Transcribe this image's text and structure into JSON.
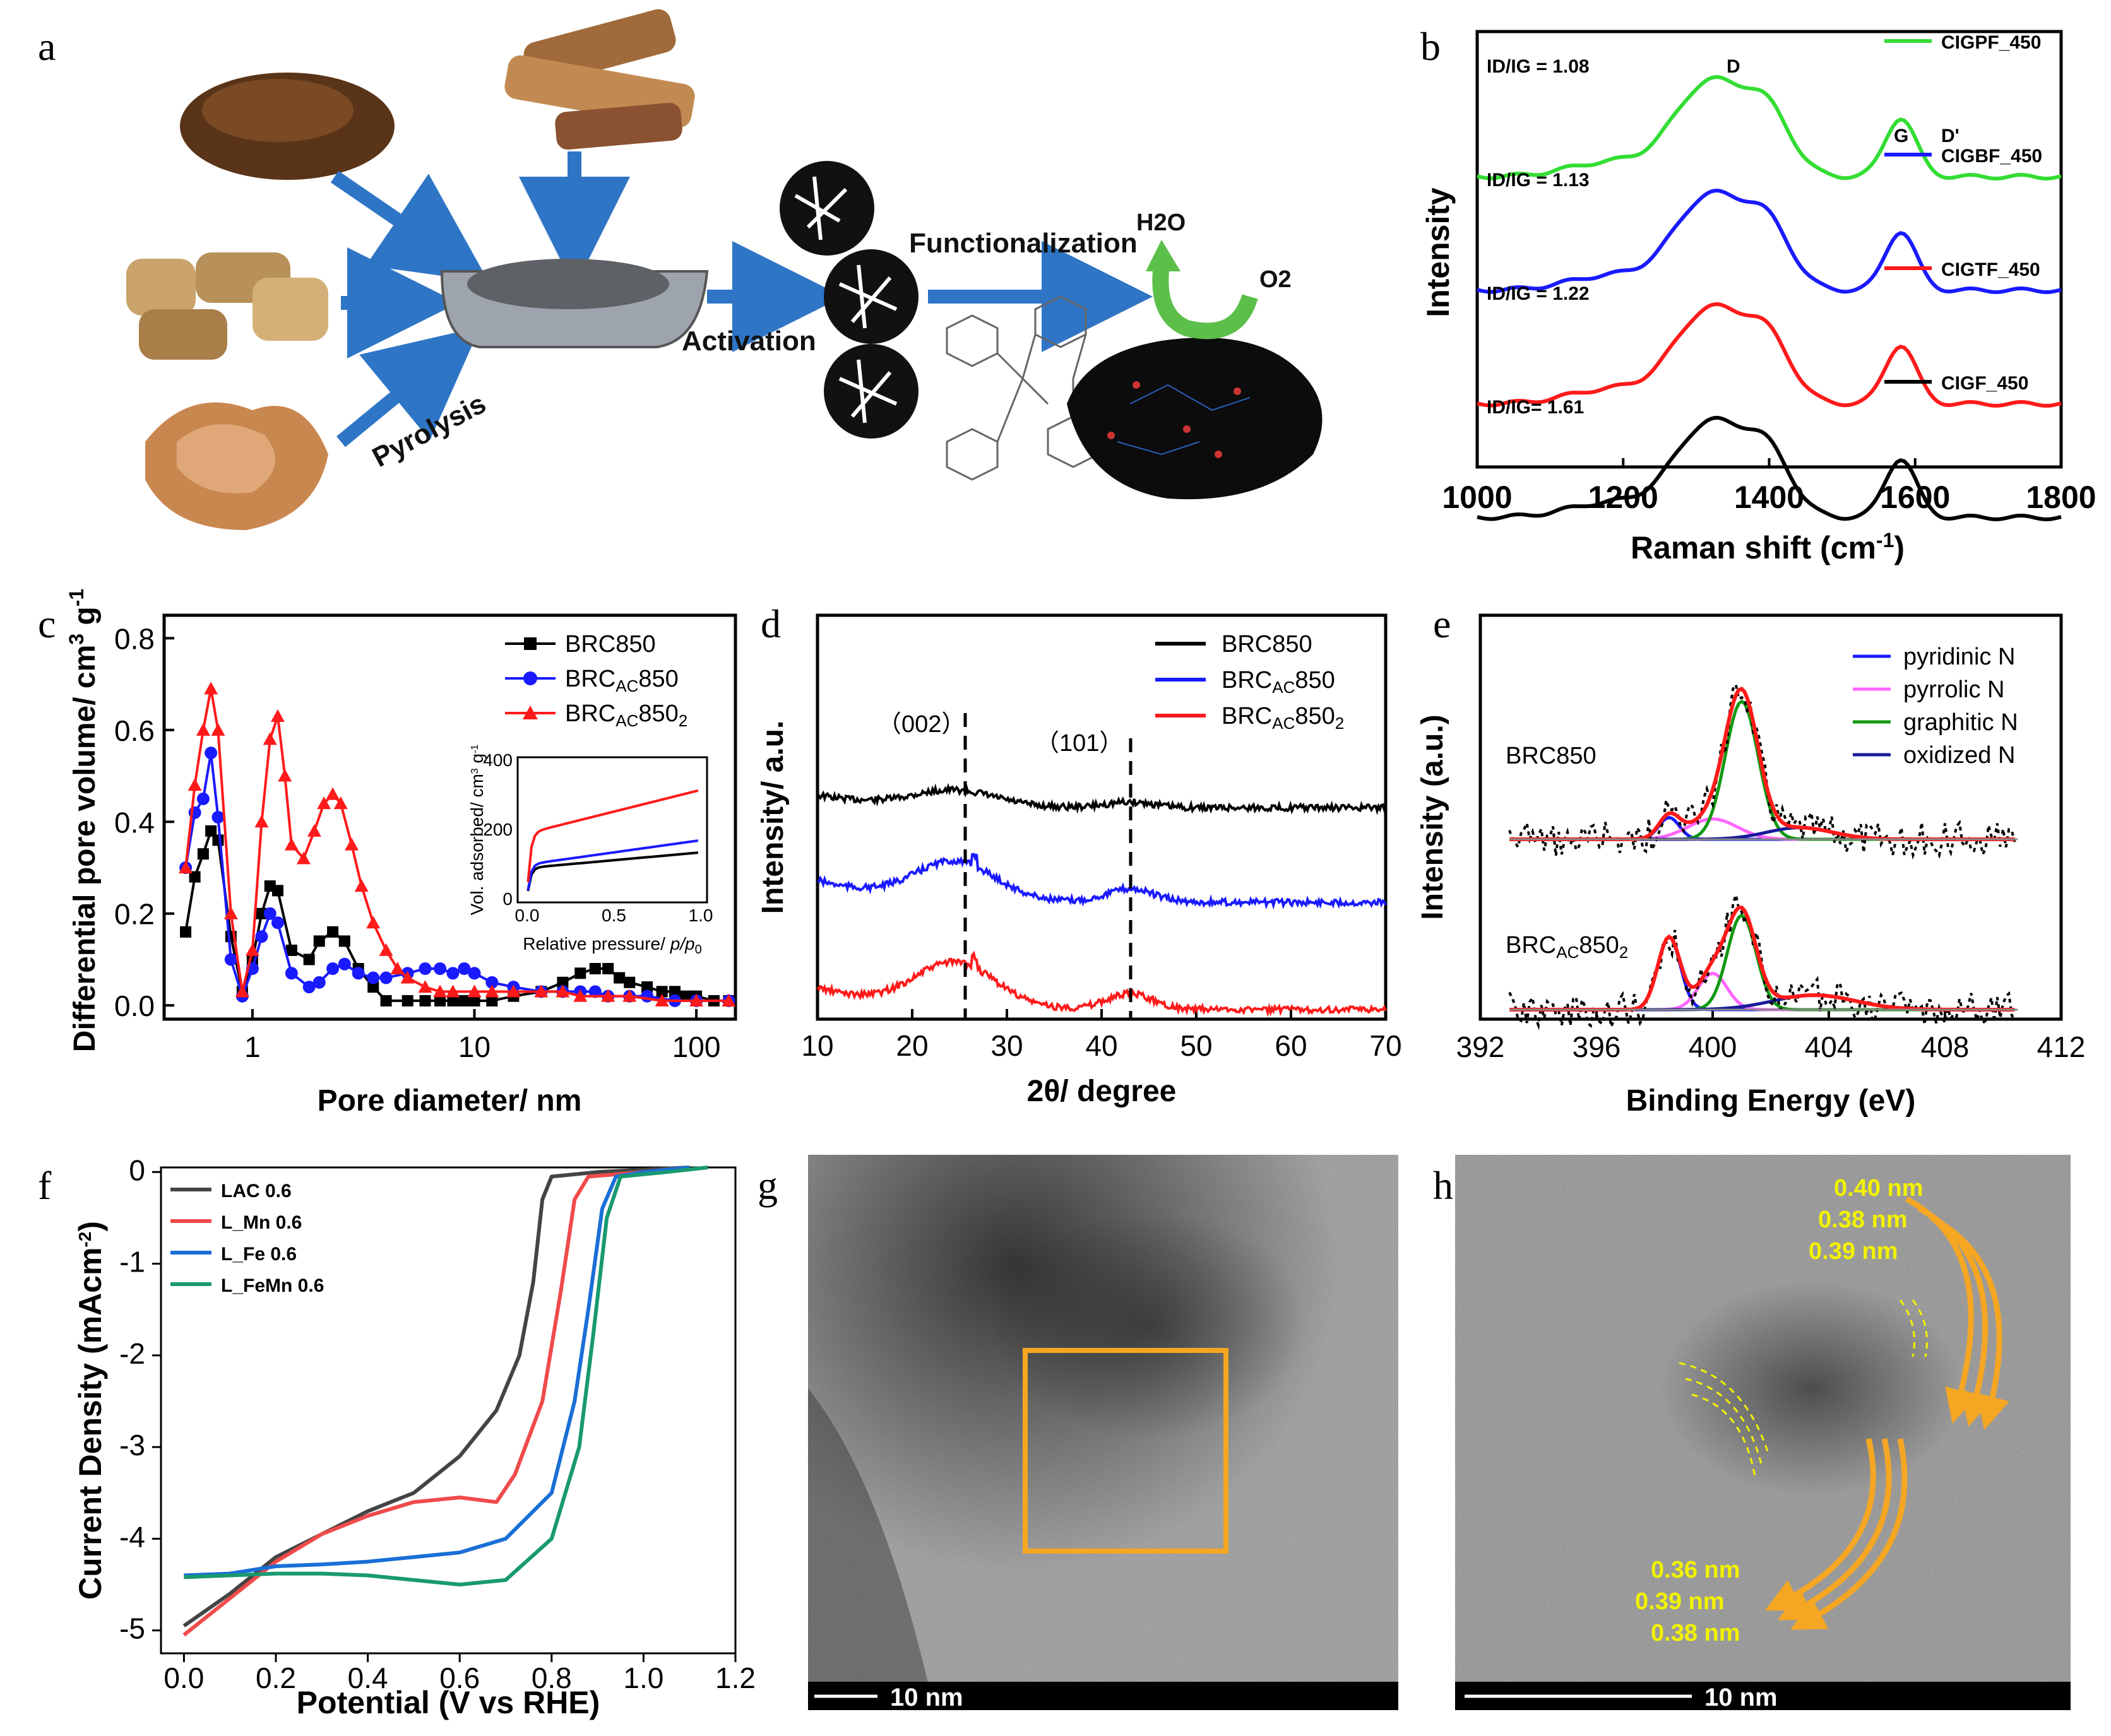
{
  "figure": {
    "panel_labels": [
      "a",
      "b",
      "c",
      "d",
      "e",
      "f",
      "g",
      "h"
    ],
    "colors": {
      "black": "#000000",
      "blue": "#1a1aff",
      "red": "#ff1a1a",
      "green": "#33dd33",
      "pink": "#ff66ff",
      "dgreen": "#119911",
      "navy": "#1a1a99",
      "orange": "#f5a623",
      "yellow": "#f2f200",
      "teal": "#199970",
      "mnred": "#f04a4a",
      "feblue": "#1a6fd6"
    }
  },
  "panel_a": {
    "labels": {
      "pyrolysis": "Pyrolysis",
      "activation": "Activation",
      "functionalization": "Functionalization",
      "h2o": "H2O",
      "o2": "O2"
    }
  },
  "panel_b": {
    "chart_data": {
      "type": "line",
      "xlabel": "Raman shift (cm-1)",
      "ylabel": "Intensity",
      "xlim": [
        1000,
        1800
      ],
      "xticks": [
        1000,
        1200,
        1400,
        1600,
        1800
      ],
      "peak_labels": [
        "D",
        "G",
        "D'"
      ],
      "series": [
        {
          "name": "CIGPF_450",
          "ratio": "ID/IG = 1.08",
          "color": "green"
        },
        {
          "name": "CIGBF_450",
          "ratio": "ID/IG = 1.13",
          "color": "blue"
        },
        {
          "name": "CIGTF_450",
          "ratio": "ID/IG = 1.22",
          "color": "red"
        },
        {
          "name": "CIGF_450",
          "ratio": "ID/IG= 1.61",
          "color": "black"
        }
      ]
    }
  },
  "panel_c": {
    "chart_data": {
      "type": "scatter",
      "xscale": "log",
      "xlabel": "Pore diameter/ nm",
      "ylabel": "Differential pore volume/ cm3 g-1",
      "xlim": [
        0.4,
        150
      ],
      "ylim": [
        -0.03,
        0.85
      ],
      "yticks": [
        "0.0",
        "0.2",
        "0.4",
        "0.6",
        "0.8"
      ],
      "xticks": [
        "1",
        "10",
        "100"
      ],
      "series": [
        {
          "name": "BRC850",
          "color": "black",
          "marker": "square",
          "x": [
            0.5,
            0.55,
            0.6,
            0.65,
            0.7,
            0.8,
            0.9,
            1.0,
            1.1,
            1.2,
            1.3,
            1.5,
            1.8,
            2.0,
            2.3,
            2.6,
            3.0,
            3.5,
            4.0,
            5,
            6,
            7,
            8,
            9,
            10,
            12,
            15,
            20,
            25,
            30,
            35,
            40,
            45,
            50,
            60,
            70,
            80,
            90,
            100,
            120,
            140
          ],
          "y": [
            0.16,
            0.28,
            0.33,
            0.38,
            0.36,
            0.15,
            0.03,
            0.1,
            0.2,
            0.26,
            0.25,
            0.12,
            0.1,
            0.14,
            0.16,
            0.14,
            0.08,
            0.04,
            0.01,
            0.01,
            0.01,
            0.01,
            0.01,
            0.01,
            0.01,
            0.01,
            0.02,
            0.03,
            0.05,
            0.07,
            0.08,
            0.08,
            0.06,
            0.05,
            0.04,
            0.03,
            0.03,
            0.02,
            0.02,
            0.01,
            0.01
          ]
        },
        {
          "name": "BRCAC850",
          "color": "blue",
          "marker": "circle",
          "x": [
            0.5,
            0.55,
            0.6,
            0.65,
            0.7,
            0.8,
            0.9,
            1.0,
            1.1,
            1.2,
            1.3,
            1.5,
            1.8,
            2.0,
            2.3,
            2.6,
            3.0,
            3.5,
            4.0,
            5,
            6,
            7,
            8,
            9,
            10,
            12,
            15,
            20,
            25,
            30,
            35,
            40,
            50,
            60,
            80,
            100,
            140
          ],
          "y": [
            0.3,
            0.42,
            0.45,
            0.55,
            0.41,
            0.1,
            0.02,
            0.08,
            0.15,
            0.2,
            0.18,
            0.07,
            0.04,
            0.05,
            0.08,
            0.09,
            0.07,
            0.06,
            0.06,
            0.07,
            0.08,
            0.08,
            0.07,
            0.08,
            0.07,
            0.05,
            0.04,
            0.03,
            0.03,
            0.03,
            0.03,
            0.02,
            0.02,
            0.02,
            0.01,
            0.01,
            0.01
          ]
        },
        {
          "name": "BRCAC8502",
          "color": "red",
          "marker": "triangle",
          "x": [
            0.5,
            0.55,
            0.6,
            0.65,
            0.7,
            0.8,
            0.9,
            1.0,
            1.1,
            1.2,
            1.3,
            1.4,
            1.5,
            1.7,
            1.9,
            2.1,
            2.3,
            2.5,
            2.8,
            3.1,
            3.5,
            4.0,
            4.5,
            5,
            6,
            7,
            8,
            10,
            12,
            15,
            20,
            25,
            30,
            40,
            50,
            70,
            100,
            140
          ],
          "y": [
            0.3,
            0.48,
            0.6,
            0.69,
            0.6,
            0.2,
            0.03,
            0.12,
            0.4,
            0.58,
            0.63,
            0.5,
            0.35,
            0.32,
            0.38,
            0.44,
            0.46,
            0.44,
            0.35,
            0.26,
            0.18,
            0.12,
            0.08,
            0.06,
            0.04,
            0.03,
            0.03,
            0.03,
            0.03,
            0.03,
            0.03,
            0.03,
            0.02,
            0.02,
            0.02,
            0.01,
            0.01,
            0.01
          ]
        }
      ],
      "legend": [
        "BRC850",
        "BRCAC850",
        "BRCAC8502"
      ],
      "inset": {
        "xlabel": "Relative pressure/ p/p0",
        "ylabel": "Vol. adsorbed/ cm3 g-1",
        "xticks": [
          "0.0",
          "0.5",
          "1.0"
        ],
        "yticks": [
          "0",
          "200",
          "400"
        ],
        "ylim": [
          0,
          400
        ],
        "series": [
          {
            "name": "BRC850",
            "y0": 90,
            "y1": 135
          },
          {
            "name": "BRCAC850",
            "y0": 100,
            "y1": 170
          },
          {
            "name": "BRCAC8502",
            "y0": 190,
            "y1": 315
          }
        ]
      }
    }
  },
  "panel_d": {
    "chart_data": {
      "type": "line",
      "xlabel": "2θ/ degree",
      "ylabel": "Intensity/ a.u.",
      "xlim": [
        10,
        70
      ],
      "xticks": [
        "10",
        "20",
        "30",
        "40",
        "50",
        "60",
        "70"
      ],
      "annotations": [
        "（002）",
        "（101）"
      ],
      "series": [
        {
          "name": "BRC850"
        },
        {
          "name": "BRCAC850"
        },
        {
          "name": "BRCAC8502"
        }
      ]
    }
  },
  "panel_e": {
    "chart_data": {
      "type": "line",
      "xlabel": "Binding Energy (eV)",
      "ylabel": "Intensity (a.u.)",
      "xlim": [
        392,
        412
      ],
      "xticks": [
        "392",
        "396",
        "400",
        "404",
        "408",
        "412"
      ],
      "legend": [
        "pyridinic N",
        "pyrrolic N",
        "graphitic N",
        "oxidized N"
      ],
      "samples": [
        "BRC850",
        "BRCAC8502"
      ]
    }
  },
  "panel_f": {
    "chart_data": {
      "type": "line",
      "xlabel": "Potential (V vs RHE)",
      "ylabel": "Current Density (mAcm-2)",
      "xlim": [
        -0.05,
        1.2
      ],
      "ylim": [
        -5.25,
        0.05
      ],
      "xticks": [
        "0.0",
        "0.2",
        "0.4",
        "0.6",
        "0.8",
        "1.0",
        "1.2"
      ],
      "yticks": [
        "0",
        "-1",
        "-2",
        "-3",
        "-4",
        "-5"
      ],
      "series": [
        {
          "name": "LAC 0.6",
          "color": "#444444"
        },
        {
          "name": "L_Mn 0.6",
          "color": "#f04a4a"
        },
        {
          "name": "L_Fe 0.6",
          "color": "#1a6fd6"
        },
        {
          "name": "L_FeMn 0.6",
          "color": "#199970"
        }
      ]
    }
  },
  "panel_g": {
    "scalebar": "10 nm"
  },
  "panel_h": {
    "scalebar": "10 nm",
    "spacings_top": [
      "0.40 nm",
      "0.38 nm",
      "0.39 nm"
    ],
    "spacings_bottom": [
      "0.36 nm",
      "0.39 nm",
      "0.38 nm"
    ]
  }
}
